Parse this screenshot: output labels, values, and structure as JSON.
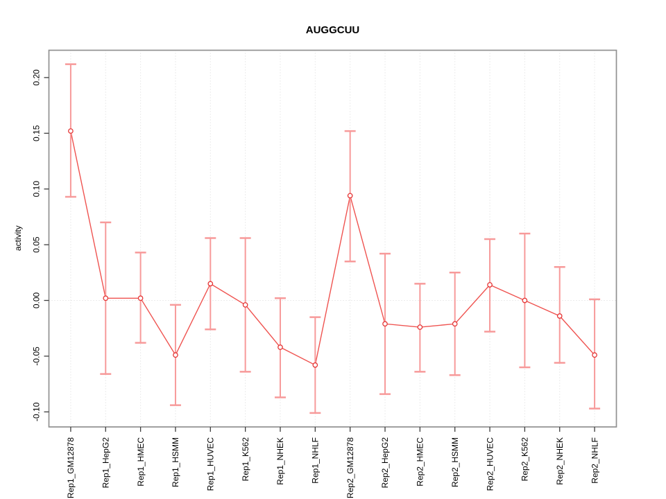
{
  "title": "AUGGCUU",
  "colors": {
    "point": "#e53535",
    "line": "#ef5350",
    "error_bar": "#f79a9a",
    "box": "#909090",
    "tick": "#3c3c3c",
    "grid": "#d9d9d9",
    "text": "#000000",
    "background": "#ffffff"
  },
  "chart_data": {
    "type": "line",
    "title": "AUGGCUU",
    "xlabel": "",
    "ylabel": "activity",
    "legend_position": "none",
    "marker": "open-circle",
    "error_bars": true,
    "grid": {
      "vertical_dotted_per_category": true,
      "horizontal_dotted_at_zero": true
    },
    "categories": [
      "Rep1_GM12878",
      "Rep1_HepG2",
      "Rep1_HMEC",
      "Rep1_HSMM",
      "Rep1_HUVEC",
      "Rep1_K562",
      "Rep1_NHEK",
      "Rep1_NHLF",
      "Rep2_GM12878",
      "Rep2_HepG2",
      "Rep2_HMEC",
      "Rep2_HSMM",
      "Rep2_HUVEC",
      "Rep2_K562",
      "Rep2_NHEK",
      "Rep2_NHLF"
    ],
    "series": [
      {
        "name": "activity",
        "values": [
          0.152,
          0.002,
          0.002,
          -0.049,
          0.015,
          -0.004,
          -0.042,
          -0.058,
          0.094,
          -0.021,
          -0.024,
          -0.021,
          0.014,
          0.0,
          -0.014,
          -0.049
        ],
        "ci_low": [
          0.093,
          -0.066,
          -0.038,
          -0.094,
          -0.026,
          -0.064,
          -0.087,
          -0.101,
          0.035,
          -0.084,
          -0.064,
          -0.067,
          -0.028,
          -0.06,
          -0.056,
          -0.097
        ],
        "ci_high": [
          0.212,
          0.07,
          0.043,
          -0.004,
          0.056,
          0.056,
          0.002,
          -0.015,
          0.152,
          0.042,
          0.015,
          0.025,
          0.055,
          0.06,
          0.03,
          0.001
        ]
      }
    ],
    "ytick_labels": [
      "0.20",
      "0.15",
      "0.10",
      "0.05",
      "0.00",
      "-0.05",
      "-0.10"
    ],
    "ylim": [
      -0.1135,
      0.2245
    ],
    "xlim": [
      0.376,
      16.624
    ]
  }
}
